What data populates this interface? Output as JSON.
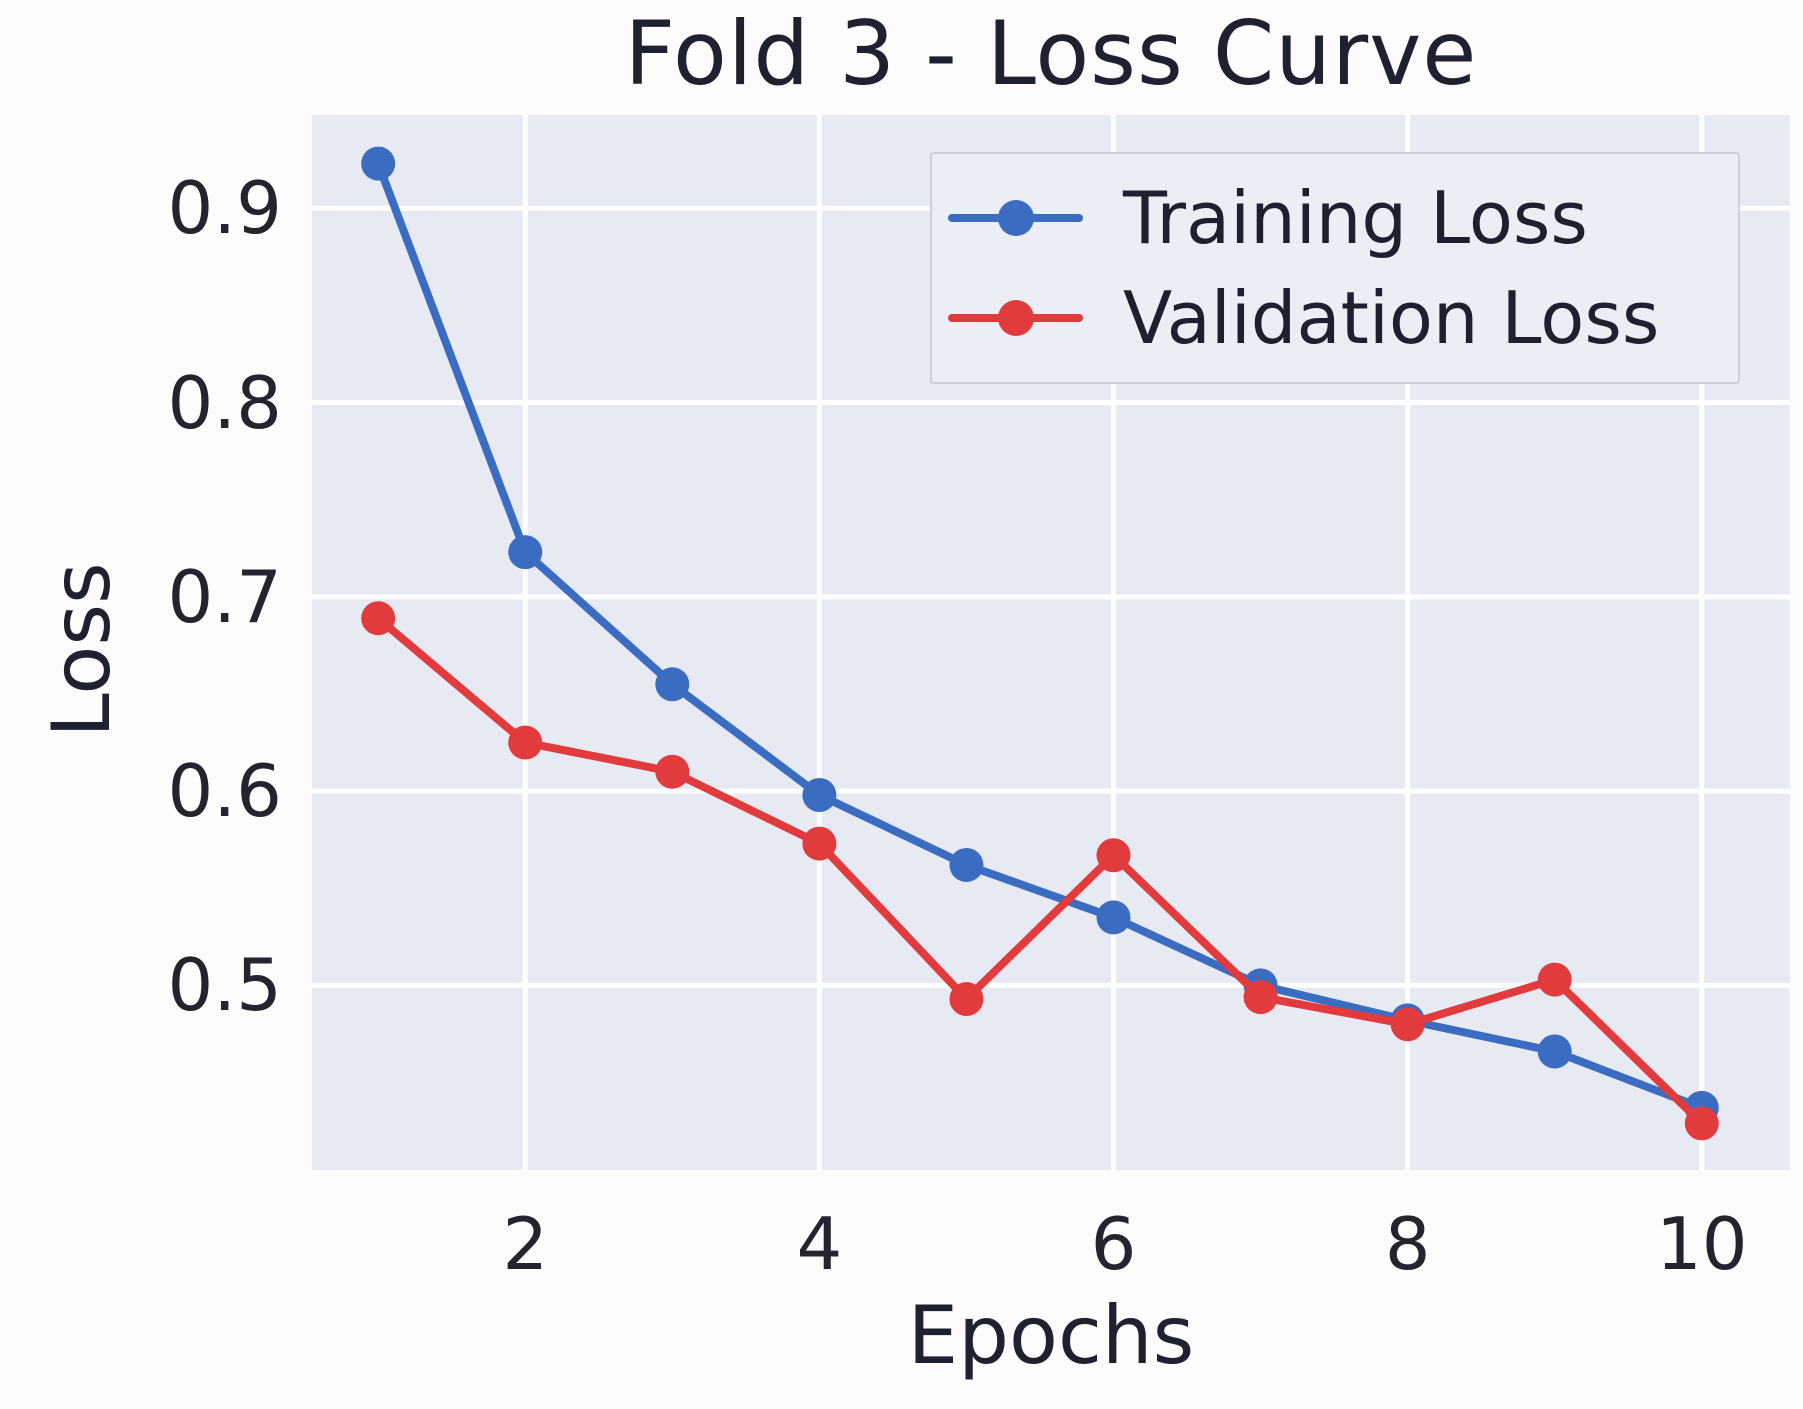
{
  "figure": {
    "title": "Fold 3 - Loss Curve",
    "xlabel": "Epochs",
    "ylabel": "Loss"
  },
  "chart_data": {
    "type": "line",
    "title": "Fold 3 - Loss Curve",
    "xlabel": "Epochs",
    "ylabel": "Loss",
    "x": [
      1,
      2,
      3,
      4,
      5,
      6,
      7,
      8,
      9,
      10
    ],
    "series": [
      {
        "name": "Training Loss",
        "color": "#3a6cc1",
        "marker": "circle",
        "values": [
          0.923,
          0.723,
          0.655,
          0.598,
          0.562,
          0.535,
          0.5,
          0.482,
          0.466,
          0.437
        ]
      },
      {
        "name": "Validation Loss",
        "color": "#e23b3e",
        "marker": "circle",
        "values": [
          0.689,
          0.625,
          0.61,
          0.573,
          0.493,
          0.567,
          0.494,
          0.48,
          0.503,
          0.429
        ]
      }
    ],
    "xticks": [
      2,
      4,
      6,
      8,
      10
    ],
    "yticks": [
      0.5,
      0.6,
      0.7,
      0.8,
      0.9
    ],
    "xlim": [
      0.55,
      10.6
    ],
    "ylim": [
      0.405,
      0.948
    ],
    "grid": true,
    "legend_position": "upper right",
    "style": {
      "plot_bg": "#e7eaf2",
      "grid_color": "#ffffff",
      "text_color": "#23242e",
      "figure_bg": "#fcfcfd"
    }
  }
}
